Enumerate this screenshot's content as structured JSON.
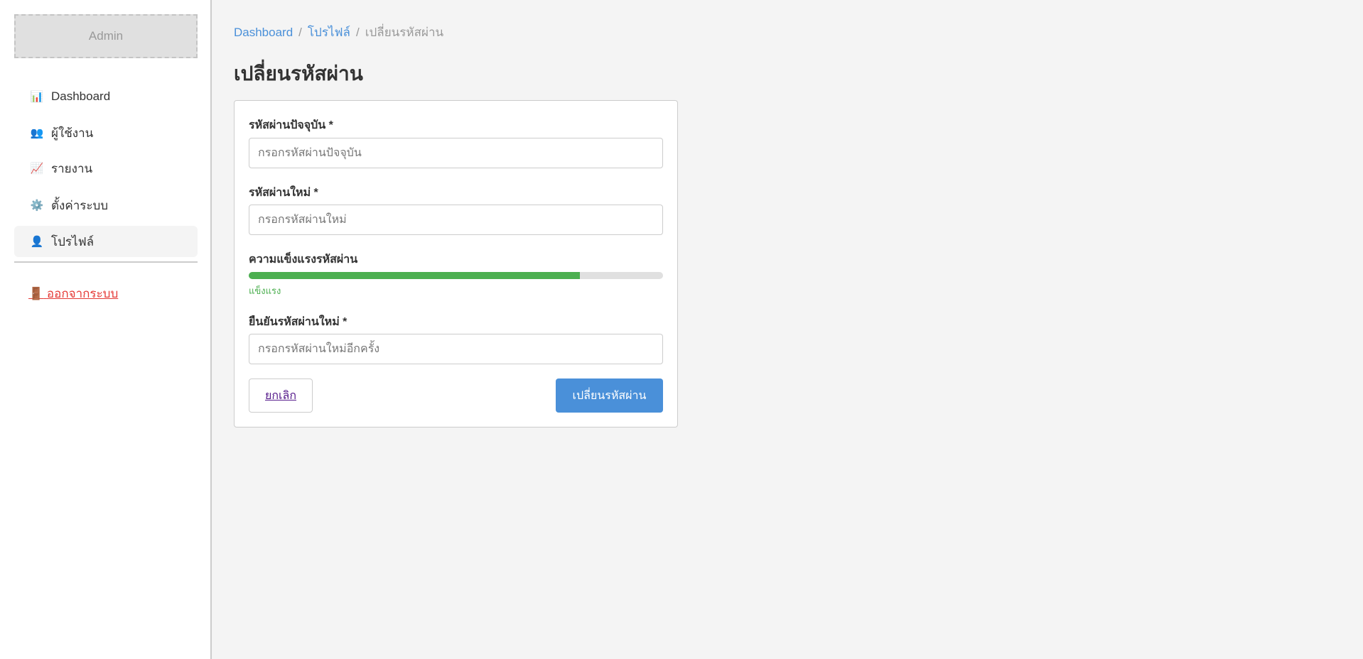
{
  "sidebar": {
    "logo": "Admin",
    "items": [
      {
        "icon": "bar-chart-icon",
        "glyph": "📊",
        "label": "Dashboard"
      },
      {
        "icon": "users-icon",
        "glyph": "👥",
        "label": "ผู้ใช้งาน"
      },
      {
        "icon": "chart-increasing-icon",
        "glyph": "📈",
        "label": "รายงาน"
      },
      {
        "icon": "gear-icon",
        "glyph": "⚙️",
        "label": "ตั้งค่าระบบ"
      },
      {
        "icon": "user-icon",
        "glyph": "👤",
        "label": "โปรไฟล์",
        "active": true
      }
    ],
    "logout": {
      "icon": "door-icon",
      "glyph": "🚪",
      "label": "ออกจากระบบ",
      "color": "#e53935"
    }
  },
  "breadcrumb": [
    "Dashboard",
    "โปรไฟล์",
    "เปลี่ยนรหัสผ่าน"
  ],
  "page_title": "เปลี่ยนรหัสผ่าน",
  "form": {
    "current": {
      "label": "รหัสผ่านปัจจุบัน *",
      "placeholder": "กรอกรหัสผ่านปัจจุบัน",
      "value": ""
    },
    "new": {
      "label": "รหัสผ่านใหม่ *",
      "placeholder": "กรอกรหัสผ่านใหม่",
      "value": ""
    },
    "strength": {
      "label": "ความแข็งแรงรหัสผ่าน",
      "level_text": "แข็งแรง",
      "percent": 80,
      "color": "#4caf50"
    },
    "confirm": {
      "label": "ยืนยันรหัสผ่านใหม่ *",
      "placeholder": "กรอกรหัสผ่านใหม่อีกครั้ง",
      "value": ""
    },
    "cancel": "ยกเลิก",
    "submit": "เปลี่ยนรหัสผ่าน",
    "accent": "#4a90d9"
  }
}
